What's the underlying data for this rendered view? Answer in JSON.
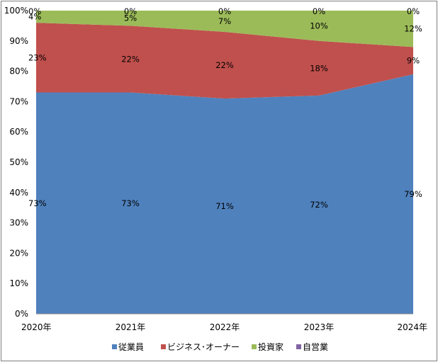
{
  "chart_data": {
    "type": "area",
    "stacked": "percent",
    "categories": [
      "2020年",
      "2021年",
      "2022年",
      "2023年",
      "2024年"
    ],
    "series": [
      {
        "name": "従業員",
        "values": [
          73,
          73,
          71,
          72,
          79
        ],
        "labels": [
          "73%",
          "73%",
          "71%",
          "72%",
          "79%"
        ],
        "color": "#4f81bd"
      },
      {
        "name": "ビジネス･オーナー",
        "values": [
          23,
          22,
          22,
          18,
          9
        ],
        "labels": [
          "23%",
          "22%",
          "22%",
          "18%",
          "9%"
        ],
        "color": "#c0504d"
      },
      {
        "name": "投資家",
        "values": [
          4,
          5,
          7,
          10,
          12
        ],
        "labels": [
          "4%",
          "5%",
          "7%",
          "10%",
          "12%"
        ],
        "color": "#9bbb59"
      },
      {
        "name": "自営業",
        "values": [
          0,
          0,
          0,
          0,
          0
        ],
        "labels": [
          "0%",
          "0%",
          "0%",
          "0%",
          "0%"
        ],
        "color": "#8064a2"
      }
    ],
    "yticks": [
      "0%",
      "10%",
      "20%",
      "30%",
      "40%",
      "50%",
      "60%",
      "70%",
      "80%",
      "90%",
      "100%"
    ],
    "ylim": [
      0,
      100
    ],
    "legend_position": "bottom",
    "grid": false
  }
}
